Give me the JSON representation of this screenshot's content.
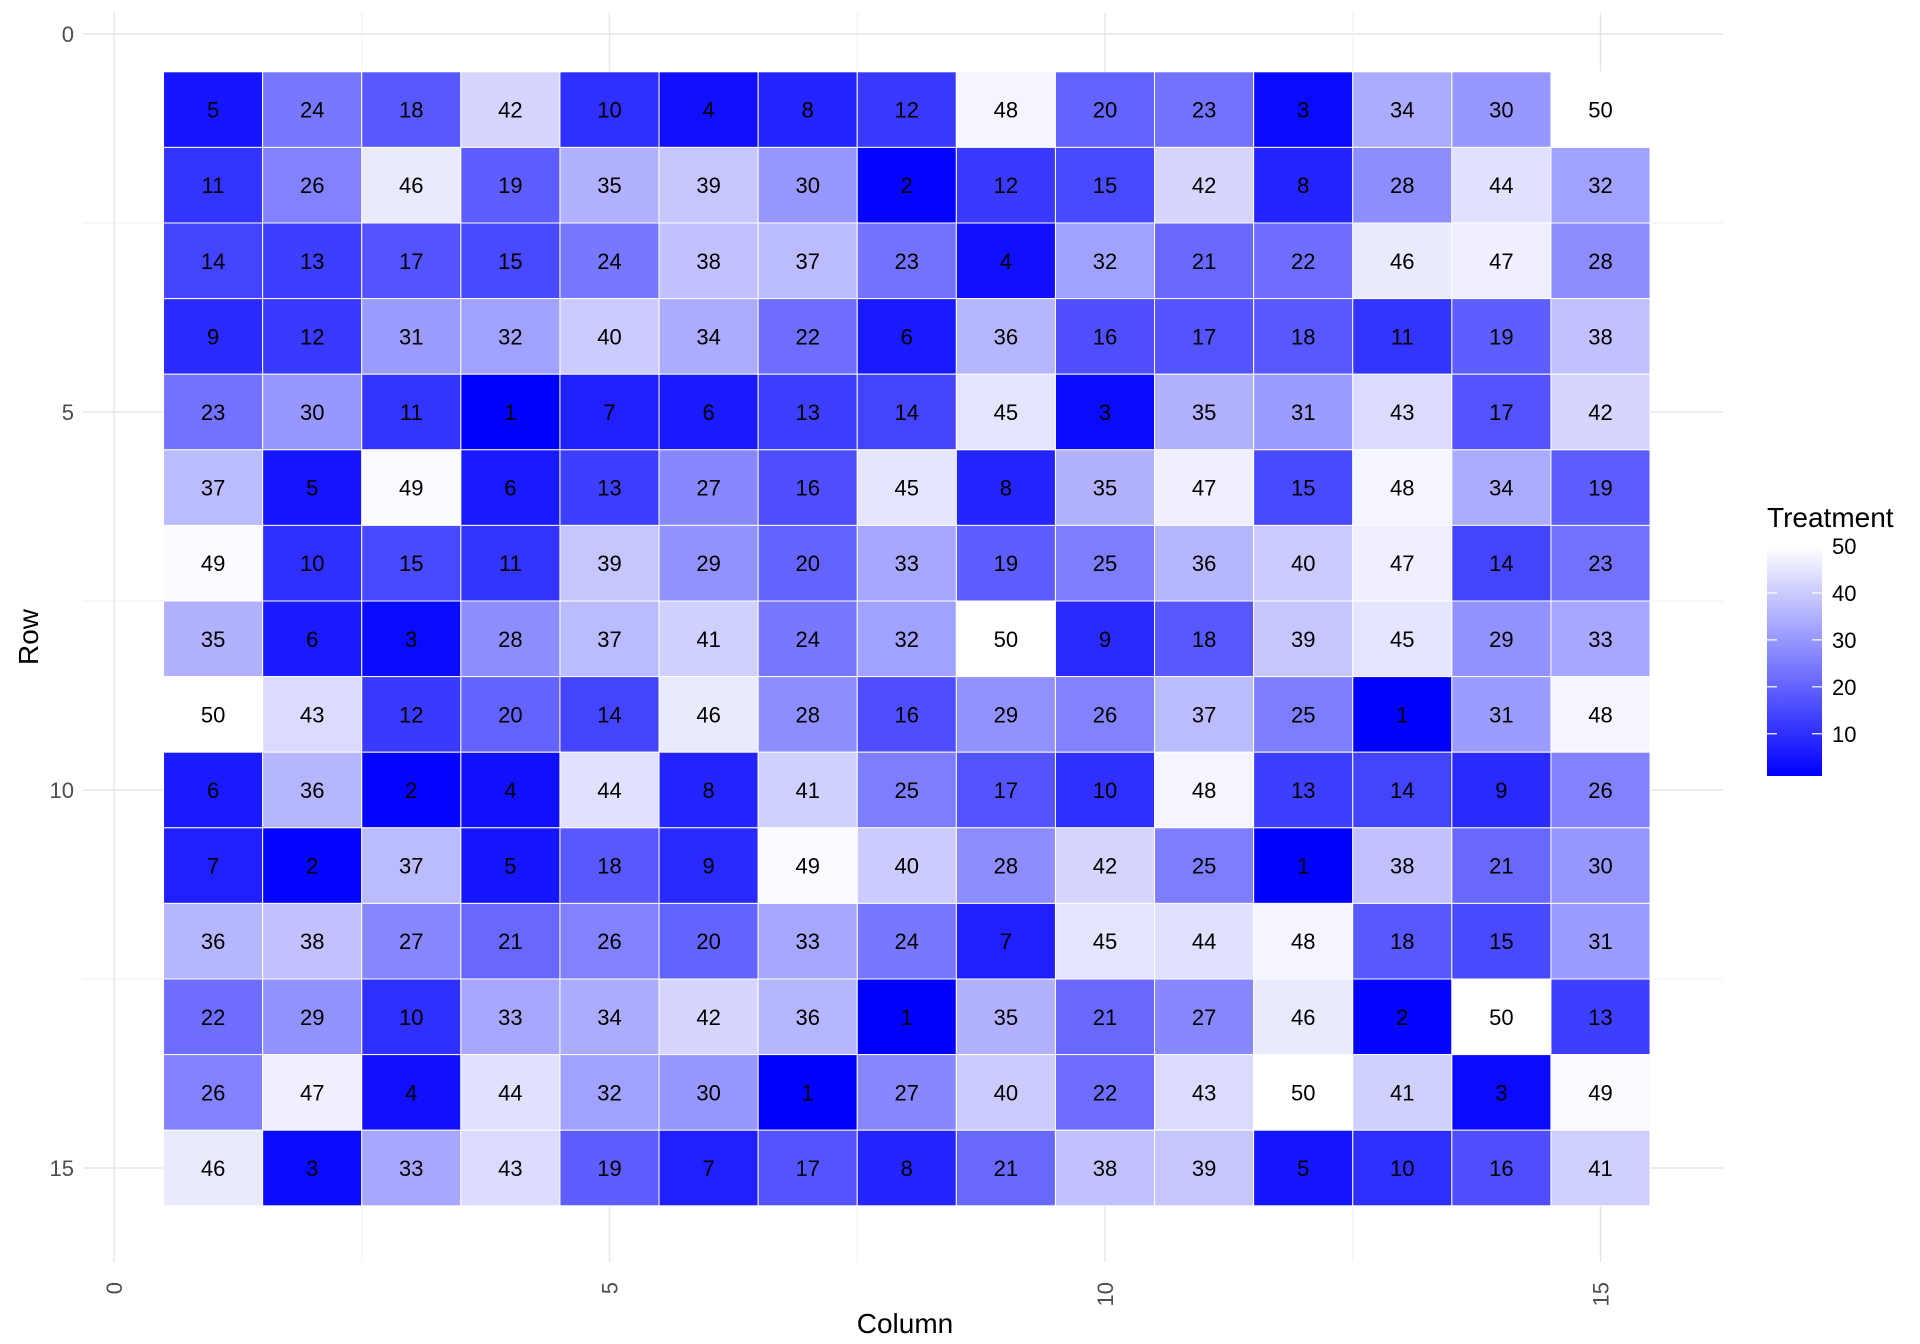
{
  "chart_data": {
    "type": "heatmap",
    "title": "",
    "xlabel": "Column",
    "ylabel": "Row",
    "xlim": [
      0,
      16
    ],
    "ylim": [
      0,
      16
    ],
    "y_reversed": true,
    "x_ticks": [
      0,
      5,
      10,
      15
    ],
    "y_ticks": [
      0,
      5,
      10,
      15
    ],
    "grid": true,
    "color_scale": {
      "low": "#0000FF",
      "high": "#FFFFFF",
      "min": 1,
      "max": 50
    },
    "legend": {
      "title": "Treatment",
      "position": "right",
      "ticks": [
        10,
        20,
        30,
        40,
        50
      ]
    },
    "values": [
      [
        5,
        24,
        18,
        42,
        10,
        4,
        8,
        12,
        48,
        20,
        23,
        3,
        34,
        30,
        50
      ],
      [
        11,
        26,
        46,
        19,
        35,
        39,
        30,
        2,
        12,
        15,
        42,
        8,
        28,
        44,
        32
      ],
      [
        14,
        13,
        17,
        15,
        24,
        38,
        37,
        23,
        4,
        32,
        21,
        22,
        46,
        47,
        28
      ],
      [
        9,
        12,
        31,
        32,
        40,
        34,
        22,
        6,
        36,
        16,
        17,
        18,
        11,
        19,
        38
      ],
      [
        23,
        30,
        11,
        1,
        7,
        6,
        13,
        14,
        45,
        3,
        35,
        31,
        43,
        17,
        42
      ],
      [
        37,
        5,
        49,
        6,
        13,
        27,
        16,
        45,
        8,
        35,
        47,
        15,
        48,
        34,
        19
      ],
      [
        49,
        10,
        15,
        11,
        39,
        29,
        20,
        33,
        19,
        25,
        36,
        40,
        47,
        14,
        23
      ],
      [
        35,
        6,
        3,
        28,
        37,
        41,
        24,
        32,
        50,
        9,
        18,
        39,
        45,
        29,
        33
      ],
      [
        50,
        43,
        12,
        20,
        14,
        46,
        28,
        16,
        29,
        26,
        37,
        25,
        1,
        31,
        48
      ],
      [
        6,
        36,
        2,
        4,
        44,
        8,
        41,
        25,
        17,
        10,
        48,
        13,
        14,
        9,
        26
      ],
      [
        7,
        2,
        37,
        5,
        18,
        9,
        49,
        40,
        28,
        42,
        25,
        1,
        38,
        21,
        30
      ],
      [
        36,
        38,
        27,
        21,
        26,
        20,
        33,
        24,
        7,
        45,
        44,
        48,
        18,
        15,
        31
      ],
      [
        22,
        29,
        10,
        33,
        34,
        42,
        36,
        1,
        35,
        21,
        27,
        46,
        2,
        50,
        13
      ],
      [
        26,
        47,
        4,
        44,
        32,
        30,
        1,
        27,
        40,
        22,
        43,
        50,
        41,
        3,
        49
      ],
      [
        46,
        3,
        33,
        43,
        19,
        7,
        17,
        8,
        21,
        38,
        39,
        5,
        10,
        16,
        41
      ]
    ]
  }
}
